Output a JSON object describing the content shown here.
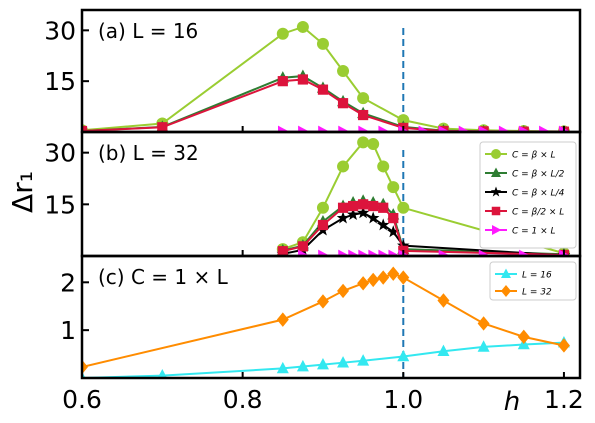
{
  "figure": {
    "ylabel": "Δr₁",
    "xlabel": "h",
    "x_tick_labels": [
      "0.6",
      "0.8",
      "1.0",
      "1.2"
    ]
  },
  "colors": {
    "beta_L": "#9acd32",
    "beta_L2": "#2e7d32",
    "beta_L4": "#000000",
    "beta2_L": "#dc143c",
    "one_L": "#ff1aff",
    "L16": "#33e8f0",
    "L32": "#ff8c00",
    "vline": "#1f77b4"
  },
  "chart_data": [
    {
      "type": "line",
      "title": "(a) L = 16",
      "xlim": [
        0.6,
        1.22
      ],
      "ylim": [
        0,
        36
      ],
      "y_ticks": [
        15,
        30
      ],
      "vline_x": 1.0,
      "series": [
        {
          "key": "beta_L",
          "marker": "circle",
          "x": [
            0.6,
            0.7,
            0.85,
            0.875,
            0.9,
            0.925,
            0.95,
            1.0,
            1.05,
            1.1,
            1.15,
            1.2
          ],
          "y": [
            0.5,
            2.5,
            29,
            31,
            26,
            18,
            10,
            3.5,
            1.0,
            0.5,
            0.3,
            0.2
          ]
        },
        {
          "key": "beta_L2",
          "marker": "triangle",
          "x": [
            0.6,
            0.7,
            0.85,
            0.875,
            0.9,
            0.925,
            0.95,
            1.0,
            1.05,
            1.1,
            1.15,
            1.2
          ],
          "y": [
            0.3,
            1.5,
            16,
            16.5,
            13,
            9,
            5.5,
            1.5,
            0.4,
            0.2,
            0.1,
            0.1
          ]
        },
        {
          "key": "beta2_L",
          "marker": "square",
          "x": [
            0.6,
            0.7,
            0.85,
            0.875,
            0.9,
            0.925,
            0.95,
            1.0,
            1.05,
            1.1,
            1.15,
            1.2
          ],
          "y": [
            0.3,
            1.4,
            15,
            15.5,
            12.5,
            8.5,
            5,
            1.2,
            0.3,
            0.2,
            0.1,
            0.1
          ]
        },
        {
          "key": "one_L",
          "marker": "triangle-right",
          "x": [
            0.85,
            0.875,
            0.9,
            0.925,
            0.95,
            0.975,
            1.0,
            1.025,
            1.05,
            1.075,
            1.1,
            1.125,
            1.15,
            1.175,
            1.2
          ],
          "y": [
            0.1,
            0.1,
            0.1,
            0.1,
            0.1,
            0.1,
            0.1,
            0.1,
            0.1,
            0.1,
            0.1,
            0.1,
            0.1,
            0.1,
            0.1
          ]
        }
      ]
    },
    {
      "type": "line",
      "title": "(b) L = 32",
      "xlim": [
        0.6,
        1.22
      ],
      "ylim": [
        0,
        36
      ],
      "y_ticks": [
        15,
        30
      ],
      "vline_x": 1.0,
      "legend": [
        {
          "key": "beta_L",
          "marker": "circle",
          "label": "C = β × L"
        },
        {
          "key": "beta_L2",
          "marker": "triangle",
          "label": "C = β × L/2"
        },
        {
          "key": "beta_L4",
          "marker": "star",
          "label": "C = β × L/4"
        },
        {
          "key": "beta2_L",
          "marker": "square",
          "label": "C = β/2 × L"
        },
        {
          "key": "one_L",
          "marker": "triangle-right",
          "label": "C = 1 × L"
        }
      ],
      "legend_position": "top-right",
      "series": [
        {
          "key": "beta_L",
          "marker": "circle",
          "x": [
            0.85,
            0.875,
            0.9,
            0.925,
            0.95,
            0.9625,
            0.975,
            0.9875,
            1.0,
            1.2
          ],
          "y": [
            2,
            4,
            14,
            26,
            33,
            32.5,
            26,
            20,
            14,
            0.8
          ]
        },
        {
          "key": "beta_L2",
          "marker": "triangle",
          "x": [
            0.85,
            0.875,
            0.9,
            0.925,
            0.9375,
            0.95,
            0.9625,
            0.975,
            0.9875,
            1.0,
            1.2
          ],
          "y": [
            1.6,
            3,
            10,
            14.5,
            15.5,
            16,
            15.5,
            15,
            12,
            2,
            0.5
          ]
        },
        {
          "key": "beta_L4",
          "marker": "star",
          "x": [
            0.85,
            0.875,
            0.9,
            0.925,
            0.9375,
            0.95,
            0.9625,
            0.975,
            0.9875,
            1.0,
            1.2
          ],
          "y": [
            0.6,
            1.8,
            7.5,
            11,
            12,
            12.5,
            11,
            9,
            7,
            3,
            0.2
          ]
        },
        {
          "key": "beta2_L",
          "marker": "square",
          "x": [
            0.85,
            0.875,
            0.9,
            0.925,
            0.9375,
            0.95,
            0.9625,
            0.975,
            0.9875,
            1.0,
            1.2
          ],
          "y": [
            1.4,
            2.8,
            9,
            14,
            14.5,
            15,
            14.5,
            14,
            11,
            1.5,
            0.3
          ]
        },
        {
          "key": "one_L",
          "marker": "triangle-right",
          "x": [
            0.875,
            0.9,
            0.925,
            0.9375,
            0.95,
            0.9625,
            0.975,
            0.9875,
            1.0,
            1.05,
            1.1,
            1.15,
            1.2
          ],
          "y": [
            0.1,
            0.1,
            0.1,
            0.1,
            0.1,
            0.1,
            0.1,
            0.1,
            0.1,
            0.1,
            0.1,
            0.1,
            0.1
          ]
        }
      ]
    },
    {
      "type": "line",
      "title": "(c) C = 1 × L",
      "xlim": [
        0.6,
        1.22
      ],
      "ylim": [
        0,
        2.55
      ],
      "y_ticks": [
        1,
        2
      ],
      "vline_x": 1.0,
      "legend": [
        {
          "key": "L16",
          "marker": "triangle",
          "label": "L = 16"
        },
        {
          "key": "L32",
          "marker": "diamond",
          "label": "L = 32"
        }
      ],
      "legend_position": "top-right",
      "series": [
        {
          "key": "L16",
          "marker": "triangle",
          "x": [
            0.6,
            0.7,
            0.85,
            0.875,
            0.9,
            0.925,
            0.95,
            1.0,
            1.05,
            1.1,
            1.15,
            1.2
          ],
          "y": [
            0.0,
            0.05,
            0.2,
            0.24,
            0.28,
            0.32,
            0.36,
            0.45,
            0.56,
            0.65,
            0.7,
            0.74
          ]
        },
        {
          "key": "L32",
          "marker": "diamond",
          "x": [
            0.6,
            0.85,
            0.9,
            0.925,
            0.95,
            0.9625,
            0.975,
            0.9875,
            1.0,
            1.05,
            1.1,
            1.15,
            1.2
          ],
          "y": [
            0.23,
            1.22,
            1.6,
            1.82,
            1.98,
            2.05,
            2.1,
            2.18,
            2.1,
            1.62,
            1.14,
            0.86,
            0.68
          ]
        }
      ]
    }
  ]
}
